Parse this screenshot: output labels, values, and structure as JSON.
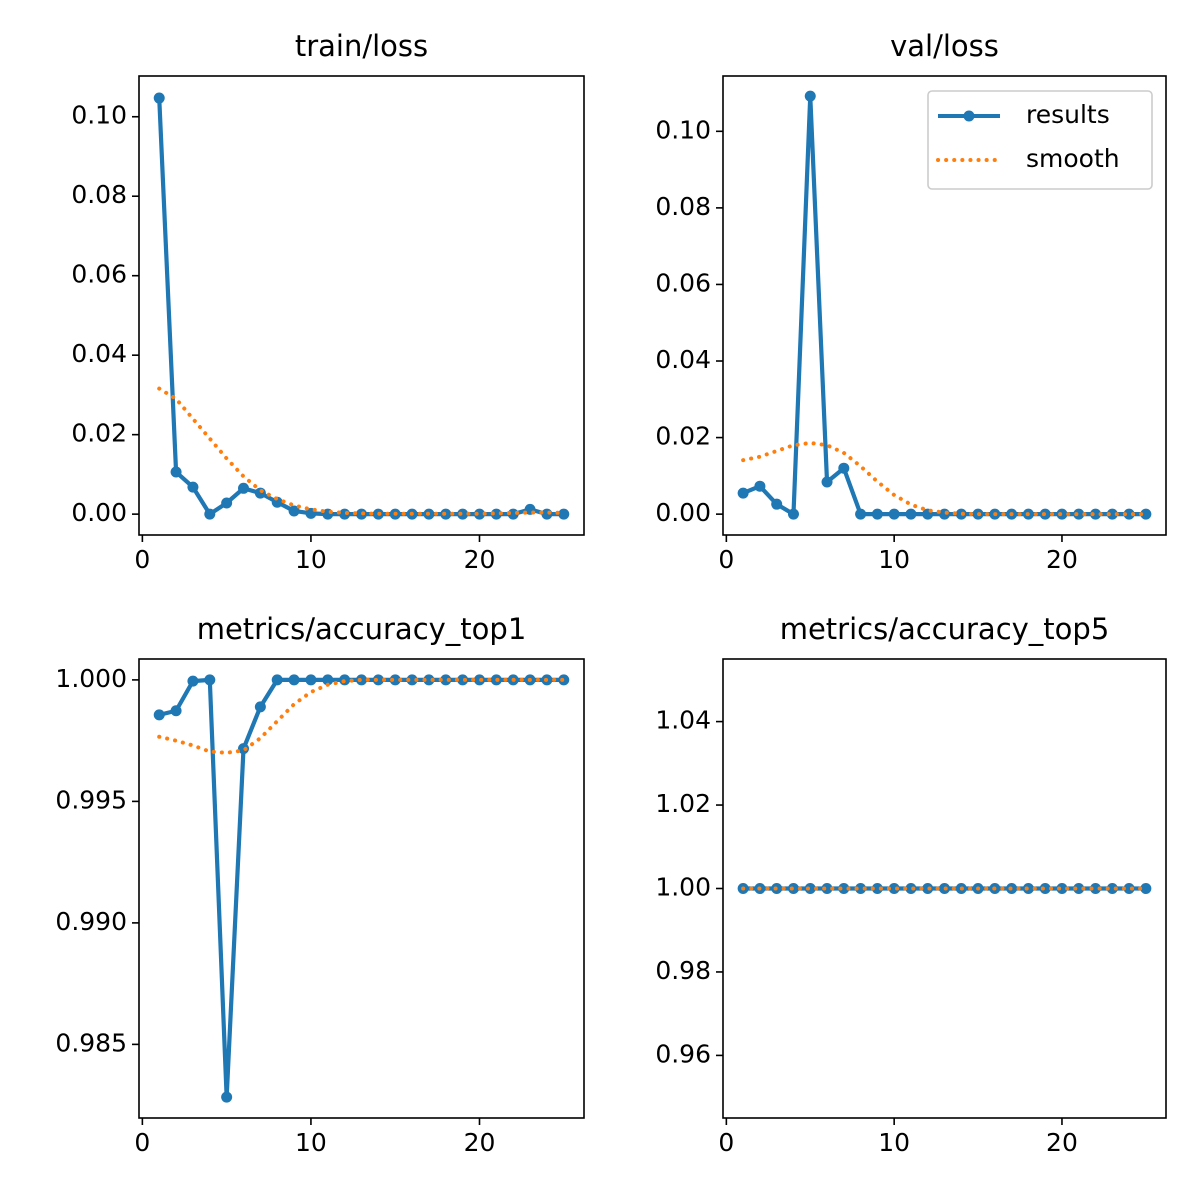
{
  "chart_data": [
    {
      "type": "line",
      "title": "train/loss",
      "x": [
        1,
        2,
        3,
        4,
        5,
        6,
        7,
        8,
        9,
        10,
        11,
        12,
        13,
        14,
        15,
        16,
        17,
        18,
        19,
        20,
        21,
        22,
        23,
        24,
        25
      ],
      "series": [
        {
          "color": "#1f77b4",
          "marker": "o",
          "linestyle": "solid",
          "values": [
            0.1047,
            0.0106,
            0.0068,
            0.0,
            0.0028,
            0.0065,
            0.0053,
            0.003,
            0.0008,
            0.0002,
            0,
            0,
            0,
            0,
            0,
            0,
            0,
            0,
            0,
            0,
            0,
            0,
            0.0012,
            0,
            0
          ]
        },
        {
          "color": "#ff7f0e",
          "linestyle": "dotted",
          "values": [
            0.0316,
            0.029,
            0.024,
            0.019,
            0.014,
            0.0095,
            0.006,
            0.0038,
            0.0022,
            0.0012,
            0.0006,
            0.0003,
            0.0002,
            0.0001,
            0.0001,
            0.0001,
            0.0001,
            0.0001,
            0.0001,
            0.0001,
            0.0002,
            0.0003,
            0.0004,
            0.0004,
            0.0003
          ]
        }
      ],
      "xlim": [
        -0.2,
        26.2
      ],
      "ylim": [
        -0.00525,
        0.11025
      ],
      "xticks": [
        0,
        10,
        20
      ],
      "yticks": [
        {
          "value": 0,
          "label": "0.00"
        },
        0.02,
        0.04,
        0.06,
        0.08,
        {
          "value": 0.1,
          "label": "0.10"
        }
      ]
    },
    {
      "type": "line",
      "title": "val/loss",
      "x": [
        1,
        2,
        3,
        4,
        5,
        6,
        7,
        8,
        9,
        10,
        11,
        12,
        13,
        14,
        15,
        16,
        17,
        18,
        19,
        20,
        21,
        22,
        23,
        24,
        25
      ],
      "series": [
        {
          "name": "results",
          "color": "#1f77b4",
          "marker": "o",
          "linestyle": "solid",
          "values": [
            0.0055,
            0.0073,
            0.0026,
            0.0,
            0.1092,
            0.0084,
            0.012,
            0,
            0,
            0,
            0,
            0,
            0,
            0,
            0,
            0,
            0,
            0,
            0,
            0,
            0,
            0,
            0,
            0,
            0
          ]
        },
        {
          "name": "smooth",
          "color": "#ff7f0e",
          "linestyle": "dotted",
          "values": [
            0.0141,
            0.015,
            0.0165,
            0.018,
            0.0186,
            0.018,
            0.016,
            0.0125,
            0.0085,
            0.005,
            0.0025,
            0.001,
            0.0004,
            0.0001,
            0,
            0,
            0,
            0,
            0,
            0,
            0,
            0,
            0,
            0,
            0
          ]
        }
      ],
      "legend": "upper right",
      "xlim": [
        -0.2,
        26.2
      ],
      "ylim": [
        -0.00545,
        0.11445
      ],
      "xticks": [
        0,
        10,
        20
      ],
      "yticks": [
        {
          "value": 0,
          "label": "0.00"
        },
        0.02,
        0.04,
        0.06,
        0.08,
        {
          "value": 0.1,
          "label": "0.10"
        }
      ]
    },
    {
      "type": "line",
      "title": "metrics/accuracy_top1",
      "x": [
        1,
        2,
        3,
        4,
        5,
        6,
        7,
        8,
        9,
        10,
        11,
        12,
        13,
        14,
        15,
        16,
        17,
        18,
        19,
        20,
        21,
        22,
        23,
        24,
        25
      ],
      "series": [
        {
          "color": "#1f77b4",
          "marker": "o",
          "linestyle": "solid",
          "values": [
            0.99856,
            0.99873,
            0.99995,
            1.0,
            0.98283,
            0.99717,
            0.99889,
            1,
            1,
            1,
            1,
            1,
            1,
            1,
            1,
            1,
            1,
            1,
            1,
            1,
            1,
            1,
            1,
            1,
            1
          ]
        },
        {
          "color": "#ff7f0e",
          "linestyle": "dotted",
          "values": [
            0.99766,
            0.9975,
            0.9973,
            0.99705,
            0.997,
            0.9971,
            0.9976,
            0.9983,
            0.999,
            0.9995,
            0.9998,
            0.99995,
            1,
            1,
            1,
            1,
            1,
            1,
            1,
            1,
            1,
            1,
            1,
            1,
            1
          ]
        }
      ],
      "xlim": [
        -0.2,
        26.2
      ],
      "ylim": [
        0.98197,
        1.00086
      ],
      "xticks": [
        0,
        10,
        20
      ],
      "yticks": [
        0.985,
        {
          "value": 0.99,
          "label": "0.990"
        },
        0.995,
        {
          "value": 1,
          "label": "1.000"
        }
      ]
    },
    {
      "type": "line",
      "title": "metrics/accuracy_top5",
      "x": [
        1,
        2,
        3,
        4,
        5,
        6,
        7,
        8,
        9,
        10,
        11,
        12,
        13,
        14,
        15,
        16,
        17,
        18,
        19,
        20,
        21,
        22,
        23,
        24,
        25
      ],
      "series": [
        {
          "color": "#1f77b4",
          "marker": "o",
          "linestyle": "solid",
          "values": [
            1,
            1,
            1,
            1,
            1,
            1,
            1,
            1,
            1,
            1,
            1,
            1,
            1,
            1,
            1,
            1,
            1,
            1,
            1,
            1,
            1,
            1,
            1,
            1,
            1
          ]
        },
        {
          "color": "#ff7f0e",
          "linestyle": "dotted",
          "values": [
            1,
            1,
            1,
            1,
            1,
            1,
            1,
            1,
            1,
            1,
            1,
            1,
            1,
            1,
            1,
            1,
            1,
            1,
            1,
            1,
            1,
            1,
            1,
            1,
            1
          ]
        }
      ],
      "xlim": [
        -0.2,
        26.2
      ],
      "ylim": [
        0.945,
        1.055
      ],
      "xticks": [
        0,
        10,
        20
      ],
      "yticks": [
        0.96,
        0.98,
        {
          "value": 1,
          "label": "1.00"
        },
        1.02,
        1.04
      ]
    }
  ]
}
